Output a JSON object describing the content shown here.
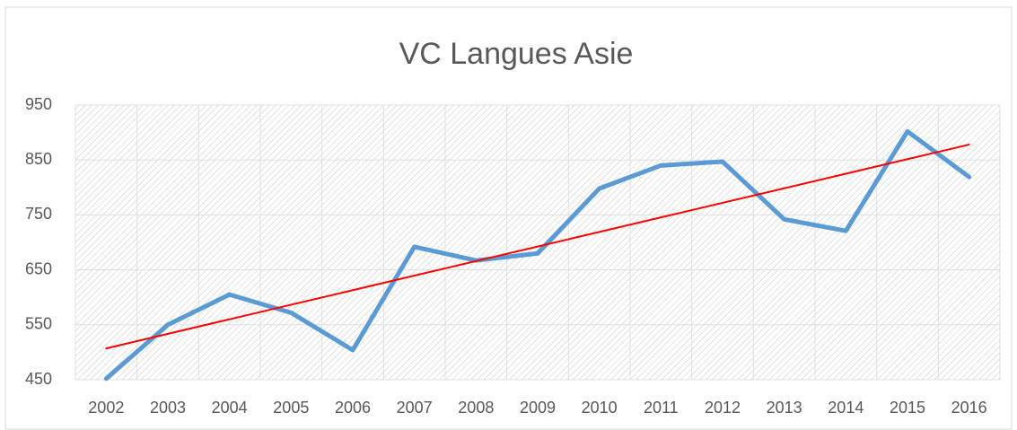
{
  "chart_data": {
    "type": "line",
    "title": "VC Langues Asie",
    "categories": [
      "2002",
      "2003",
      "2004",
      "2005",
      "2006",
      "2007",
      "2008",
      "2009",
      "2010",
      "2011",
      "2012",
      "2013",
      "2014",
      "2015",
      "2016"
    ],
    "series": [
      {
        "color": "#5b9bd5",
        "values": [
          452,
          550,
          605,
          572,
          504,
          692,
          667,
          680,
          798,
          840,
          847,
          742,
          721,
          902,
          819
        ]
      },
      {
        "color": "#ff0000",
        "values": [
          507,
          533.5,
          560,
          586.5,
          613,
          639.5,
          666,
          692.5,
          719,
          745.5,
          772,
          798.5,
          825,
          851.5,
          878
        ]
      }
    ],
    "ylim": [
      450,
      950
    ],
    "yticks": [
      450,
      550,
      650,
      750,
      850,
      950
    ],
    "grid": true
  }
}
